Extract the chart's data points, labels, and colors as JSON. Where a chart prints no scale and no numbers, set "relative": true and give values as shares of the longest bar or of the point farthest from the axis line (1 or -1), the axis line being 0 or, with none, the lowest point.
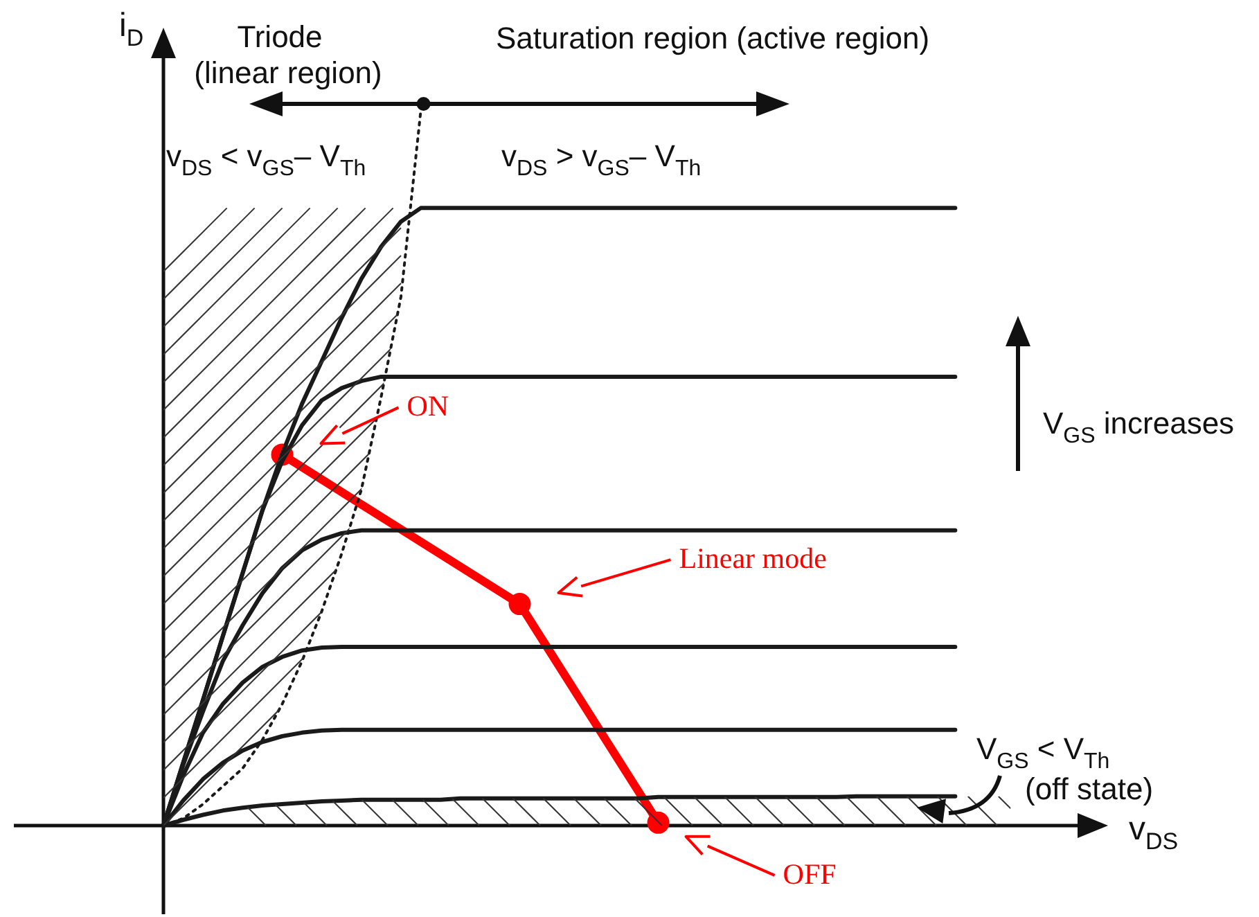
{
  "chart_data": {
    "type": "line",
    "relative": true,
    "tick_labels": false,
    "grid": false,
    "legend": false,
    "marker": "none",
    "xlabel": "v$_{DS}$",
    "ylabel": "i$_{D}$",
    "categories": [
      null,
      null,
      null,
      null,
      null,
      null,
      null,
      null,
      null,
      null,
      null,
      null,
      null,
      null,
      null,
      null,
      null,
      null,
      null,
      null,
      null,
      null,
      null,
      null,
      null,
      null,
      null,
      null,
      null,
      null,
      null,
      null,
      null,
      null,
      null,
      null,
      null,
      null,
      null,
      null,
      null,
      null,
      null,
      null,
      null,
      null,
      null,
      null,
      null
    ],
    "series": [
      {
        "color": "#1a1a1a",
        "values": [
          0,
          0.088,
          0.176,
          0.265,
          0.353,
          0.441,
          0.52,
          0.59,
          0.65,
          0.71,
          0.765,
          0.81,
          0.845,
          0.864,
          0.864,
          0.864,
          0.864,
          0.864,
          0.864,
          0.864,
          0.864,
          0.864,
          0.864,
          0.864,
          0.864,
          0.864,
          0.864,
          0.864,
          0.864,
          0.864,
          0.864,
          0.864,
          0.864,
          0.864,
          0.864,
          0.864,
          0.864,
          0.864,
          0.864,
          0.864,
          0.864,
          null,
          null,
          null,
          null,
          null,
          null,
          null,
          null
        ]
      },
      {
        "color": "#1a1a1a",
        "values": [
          0,
          0.088,
          0.176,
          0.265,
          0.353,
          0.441,
          0.51,
          0.56,
          0.595,
          0.612,
          0.622,
          0.628,
          0.628,
          0.628,
          0.628,
          0.628,
          0.628,
          0.628,
          0.628,
          0.628,
          0.628,
          0.628,
          0.628,
          0.628,
          0.628,
          0.628,
          0.628,
          0.628,
          0.628,
          0.628,
          0.628,
          0.628,
          0.628,
          0.628,
          0.628,
          0.628,
          0.628,
          0.628,
          0.628,
          0.628,
          0.628,
          null,
          null,
          null,
          null,
          null,
          null,
          null,
          null
        ]
      },
      {
        "color": "#1a1a1a",
        "values": [
          0,
          0.085,
          0.16,
          0.23,
          0.28,
          0.325,
          0.36,
          0.385,
          0.4,
          0.409,
          0.413,
          0.413,
          0.413,
          0.413,
          0.413,
          0.413,
          0.413,
          0.413,
          0.413,
          0.413,
          0.413,
          0.413,
          0.413,
          0.413,
          0.413,
          0.413,
          0.413,
          0.413,
          0.413,
          0.413,
          0.413,
          0.413,
          0.413,
          0.413,
          0.413,
          0.413,
          0.413,
          0.413,
          0.413,
          0.413,
          0.413,
          null,
          null,
          null,
          null,
          null,
          null,
          null,
          null
        ]
      },
      {
        "color": "#1a1a1a",
        "values": [
          0,
          0.07,
          0.13,
          0.17,
          0.2,
          0.222,
          0.236,
          0.245,
          0.249,
          0.25,
          0.25,
          0.25,
          0.25,
          0.25,
          0.25,
          0.25,
          0.25,
          0.25,
          0.25,
          0.25,
          0.25,
          0.25,
          0.25,
          0.25,
          0.25,
          0.25,
          0.25,
          0.25,
          0.25,
          0.25,
          0.25,
          0.25,
          0.25,
          0.25,
          0.25,
          0.25,
          0.25,
          0.25,
          0.25,
          0.25,
          0.25,
          null,
          null,
          null,
          null,
          null,
          null,
          null,
          null
        ]
      },
      {
        "color": "#1a1a1a",
        "values": [
          0,
          0.035,
          0.065,
          0.088,
          0.105,
          0.117,
          0.125,
          0.13,
          0.133,
          0.134,
          0.134,
          0.134,
          0.134,
          0.134,
          0.134,
          0.134,
          0.134,
          0.134,
          0.134,
          0.134,
          0.134,
          0.134,
          0.134,
          0.134,
          0.134,
          0.134,
          0.134,
          0.134,
          0.134,
          0.134,
          0.134,
          0.134,
          0.134,
          0.134,
          0.134,
          0.134,
          0.134,
          0.134,
          0.134,
          0.134,
          0.134,
          null,
          null,
          null,
          null,
          null,
          null,
          null,
          null
        ]
      },
      {
        "color": "#1a1a1a",
        "values": [
          0,
          0.008,
          0.015,
          0.021,
          0.025,
          0.028,
          0.03,
          0.032,
          0.034,
          0.035,
          0.036,
          0.036,
          0.036,
          0.036,
          0.036,
          0.038,
          0.038,
          0.038,
          0.038,
          0.038,
          0.038,
          0.038,
          0.038,
          0.038,
          0.038,
          0.04,
          0.04,
          0.04,
          0.04,
          0.04,
          0.04,
          0.04,
          0.04,
          0.04,
          0.04,
          0.041,
          0.041,
          0.041,
          0.041,
          0.041,
          0.041,
          null,
          null,
          null,
          null,
          null,
          null,
          null,
          null
        ]
      },
      {
        "color": "#1a1a1a",
        "line_style": "dotted",
        "values": [
          0,
          0.01,
          0.03,
          0.055,
          0.08,
          0.12,
          0.17,
          0.23,
          0.3,
          0.38,
          0.47,
          0.6,
          0.74,
          1,
          null,
          null,
          null,
          null,
          null,
          null,
          null,
          null,
          null,
          null,
          null,
          null,
          null,
          null,
          null,
          null,
          null,
          null,
          null,
          null,
          null,
          null,
          null,
          null,
          null,
          null,
          null,
          null,
          null,
          null,
          null,
          null,
          null,
          null,
          null
        ]
      },
      {
        "color": "#ff0000",
        "marker": "circle",
        "values": [
          null,
          null,
          null,
          null,
          null,
          null,
          0.519,
          null,
          null,
          null,
          null,
          null,
          null,
          null,
          null,
          null,
          null,
          null,
          0.31,
          null,
          null,
          null,
          null,
          null,
          null,
          0.004,
          null,
          null,
          null,
          null,
          null,
          null,
          null,
          null,
          null,
          null,
          null,
          null,
          null,
          null,
          null,
          null,
          null,
          null,
          null,
          null,
          null,
          null,
          null
        ]
      }
    ],
    "annotations": [
      "Triode",
      "(linear region)",
      "Saturation region (active region)",
      "v$_{DS}$ < v$_{GS}$– V$_{Th}$",
      "v$_{DS}$ > v$_{GS}$– V$_{Th}$",
      "V$_{GS}$ increases",
      "V$_{GS}$ < V$_{Th}$",
      "(off state)",
      "ON",
      "Linear mode",
      "OFF"
    ]
  }
}
